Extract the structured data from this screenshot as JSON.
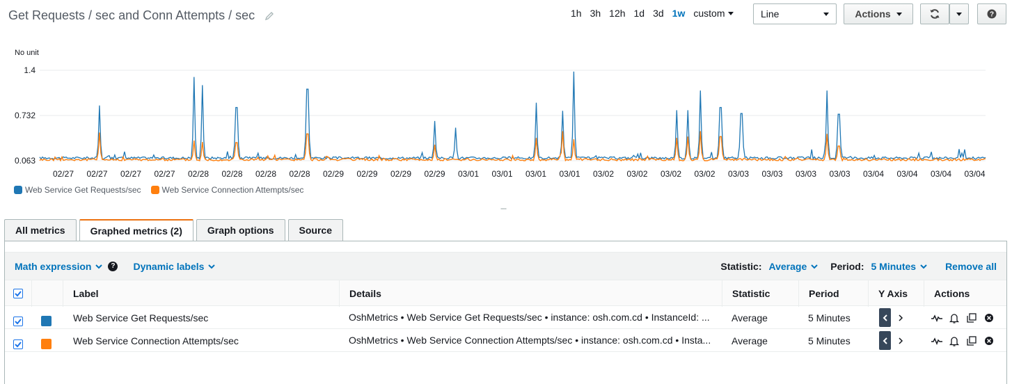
{
  "header": {
    "title": "Get Requests / sec and Conn Attempts / sec",
    "time_ranges": [
      "1h",
      "3h",
      "12h",
      "1d",
      "3d",
      "1w"
    ],
    "active_range": "1w",
    "custom_label": "custom",
    "chart_type": "Line",
    "actions_label": "Actions"
  },
  "chart_data": {
    "type": "line",
    "unit_label": "No unit",
    "ylim": [
      0.063,
      1.4
    ],
    "yticks": [
      "1.4",
      "0.732",
      "0.063"
    ],
    "x_tick_labels": [
      "02/27",
      "02/27",
      "02/27",
      "02/27",
      "02/28",
      "02/28",
      "02/28",
      "02/28",
      "02/29",
      "02/29",
      "02/29",
      "02/29",
      "03/01",
      "03/01",
      "03/01",
      "03/01",
      "03/02",
      "03/02",
      "03/02",
      "03/02",
      "03/03",
      "03/03",
      "03/03",
      "03/03",
      "03/04",
      "03/04",
      "03/04",
      "03/04"
    ],
    "grid": true,
    "legend_position": "bottom-left",
    "series": [
      {
        "name": "Web Service Get Requests/sec",
        "color": "#1f77b4",
        "baseline": 0.1,
        "spikes": [
          [
            0.063,
            0.88
          ],
          [
            0.163,
            1.3
          ],
          [
            0.172,
            1.18
          ],
          [
            0.208,
            0.85
          ],
          [
            0.283,
            1.12
          ],
          [
            0.418,
            0.65
          ],
          [
            0.44,
            0.55
          ],
          [
            0.525,
            0.92
          ],
          [
            0.553,
            0.8
          ],
          [
            0.565,
            1.38
          ],
          [
            0.674,
            0.81
          ],
          [
            0.685,
            0.81
          ],
          [
            0.699,
            1.1
          ],
          [
            0.72,
            0.85
          ],
          [
            0.742,
            0.76
          ],
          [
            0.832,
            1.1
          ],
          [
            0.845,
            0.75
          ]
        ]
      },
      {
        "name": "Web Service Connection Attempts/sec",
        "color": "#ff7f0e",
        "baseline": 0.075,
        "spikes": [
          [
            0.063,
            0.48
          ],
          [
            0.163,
            0.36
          ],
          [
            0.172,
            0.34
          ],
          [
            0.208,
            0.33
          ],
          [
            0.283,
            0.46
          ],
          [
            0.418,
            0.3
          ],
          [
            0.525,
            0.4
          ],
          [
            0.553,
            0.5
          ],
          [
            0.565,
            0.38
          ],
          [
            0.674,
            0.4
          ],
          [
            0.685,
            0.42
          ],
          [
            0.699,
            0.5
          ],
          [
            0.72,
            0.42
          ],
          [
            0.832,
            0.46
          ],
          [
            0.845,
            0.28
          ]
        ]
      }
    ]
  },
  "tabs": [
    {
      "label": "All metrics"
    },
    {
      "label": "Graphed metrics (2)"
    },
    {
      "label": "Graph options"
    },
    {
      "label": "Source"
    }
  ],
  "active_tab": "Graphed metrics (2)",
  "toolbar": {
    "math_expression": "Math expression",
    "help": "?",
    "dynamic_labels": "Dynamic labels",
    "statistic_label": "Statistic:",
    "statistic_value": "Average",
    "period_label": "Period:",
    "period_value": "5 Minutes",
    "remove_all": "Remove all"
  },
  "table": {
    "headers": {
      "label": "Label",
      "details": "Details",
      "statistic": "Statistic",
      "period": "Period",
      "yaxis": "Y Axis",
      "actions": "Actions"
    },
    "rows": [
      {
        "label": "Web Service Get Requests/sec",
        "color": "#1f77b4",
        "details": "OshMetrics • Web Service Get Requests/sec • instance: osh.com.cd • InstanceId: ...",
        "statistic": "Average",
        "period": "5 Minutes"
      },
      {
        "label": "Web Service Connection Attempts/sec",
        "color": "#ff7f0e",
        "details": "OshMetrics • Web Service Connection Attempts/sec • instance: osh.com.cd • Insta...",
        "statistic": "Average",
        "period": "5 Minutes"
      }
    ]
  }
}
